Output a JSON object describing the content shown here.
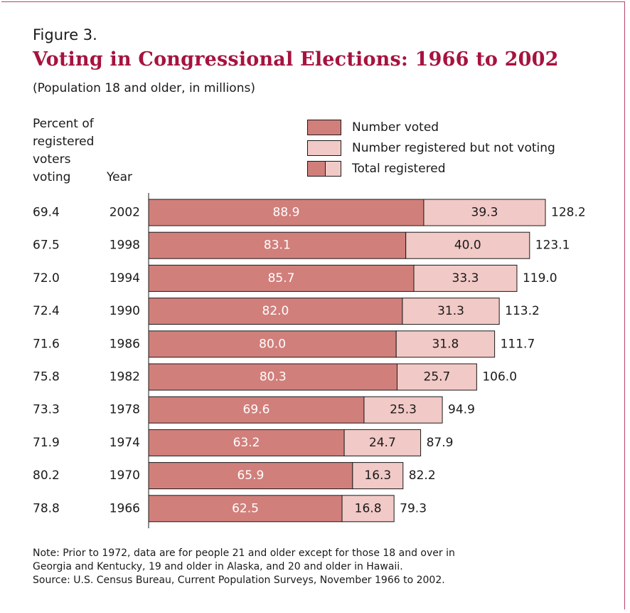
{
  "figure": {
    "label": "Figure 3.",
    "title": "Voting in Congressional Elections: 1966 to 2002",
    "subtitle": "(Population 18 and older, in millions)"
  },
  "column_headers": {
    "percent": "Percent of registered voters voting",
    "percent_lines": [
      "Percent of",
      "registered",
      "voters",
      "voting"
    ],
    "year": "Year"
  },
  "legend": {
    "voted": "Number voted",
    "not_voting": "Number registered but not voting",
    "total": "Total registered"
  },
  "colors": {
    "voted": "#d17f7b",
    "not_voting": "#f1c9c6",
    "title": "#a6133f",
    "frame": "#b5446e"
  },
  "chart_data": {
    "type": "bar",
    "orientation": "horizontal",
    "stacked": true,
    "title": "Voting in Congressional Elections: 1966 to 2002",
    "subtitle": "(Population 18 and older, in millions)",
    "categories": [
      "2002",
      "1998",
      "1994",
      "1990",
      "1986",
      "1982",
      "1978",
      "1974",
      "1970",
      "1966"
    ],
    "percent_voting": [
      "69.4",
      "67.5",
      "72.0",
      "72.4",
      "71.6",
      "75.8",
      "73.3",
      "71.9",
      "80.2",
      "78.8"
    ],
    "series": [
      {
        "name": "Number voted",
        "values": [
          88.9,
          83.1,
          85.7,
          82.0,
          80.0,
          80.3,
          69.6,
          63.2,
          65.9,
          62.5
        ]
      },
      {
        "name": "Number registered but not voting",
        "values": [
          39.3,
          40.0,
          33.3,
          31.3,
          31.8,
          25.7,
          25.3,
          24.7,
          16.3,
          16.8
        ]
      }
    ],
    "totals": {
      "name": "Total registered",
      "values": [
        128.2,
        123.1,
        119.0,
        113.2,
        111.7,
        106.0,
        94.9,
        87.9,
        82.2,
        79.3
      ]
    },
    "xlim": [
      0,
      128.2
    ],
    "grid": false,
    "legend_position": "top-right"
  },
  "notes": {
    "note_lines": [
      "Note:  Prior to 1972, data are for people 21 and older except for those 18 and over in",
      "Georgia and Kentucky, 19 and older in Alaska, and 20 and older in Hawaii."
    ],
    "source": "Source: U.S. Census Bureau, Current Population Surveys, November 1966 to 2002."
  }
}
